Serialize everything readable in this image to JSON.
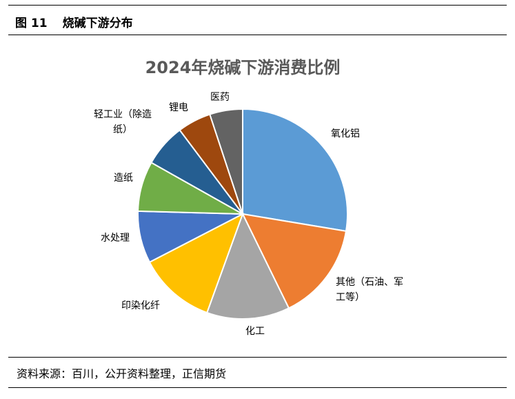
{
  "figure": {
    "number": "图 11",
    "caption": "烧碱下游分布"
  },
  "source": "资料来源：百川，公开资料整理，正信期货",
  "chart_data": {
    "type": "pie",
    "title": "2024年烧碱下游消费比例",
    "categories": [
      "氧化铝",
      "其他（石油、军工等）",
      "化工",
      "印染化纤",
      "水处理",
      "造纸",
      "轻工业（除造纸）",
      "锂电",
      "医药"
    ],
    "values": [
      27.2,
      14.9,
      12.6,
      11.7,
      7.9,
      7.6,
      6.5,
      5.1,
      5.0
    ],
    "colors": [
      "#5B9BD5",
      "#ED7D31",
      "#A5A5A5",
      "#FFC000",
      "#4472C4",
      "#70AD47",
      "#255E91",
      "#9E480E",
      "#636363"
    ],
    "label_lines": [
      [
        "氧化铝"
      ],
      [
        "其他（石油、军",
        "工等）"
      ],
      [
        "化工"
      ],
      [
        "印染化纤"
      ],
      [
        "水处理"
      ],
      [
        "造纸"
      ],
      [
        "轻工业（除造",
        "纸）"
      ],
      [
        "锂电"
      ],
      [
        "医药"
      ]
    ],
    "legend": "none"
  }
}
